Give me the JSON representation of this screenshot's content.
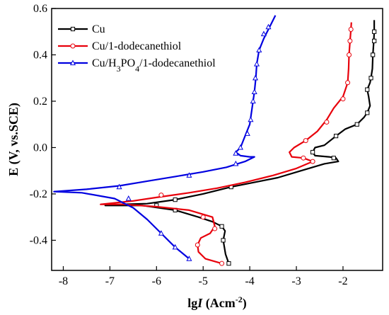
{
  "chart_data": {
    "type": "line",
    "xlabel": "lgI (Acm⁻²)",
    "xlabel_parts": [
      "lg",
      "I",
      " (Acm",
      "-2",
      ")"
    ],
    "ylabel": "E (V, vs.SCE)",
    "xlim": [
      -8.25,
      -1.15
    ],
    "ylim": [
      -0.53,
      0.6
    ],
    "xticks": [
      -8,
      -7,
      -6,
      -5,
      -4,
      -3,
      -2
    ],
    "xtick_labels": [
      "-8",
      "-7",
      "-6",
      "-5",
      "-4",
      "-3",
      "-2"
    ],
    "yticks": [
      -0.4,
      -0.2,
      0.0,
      0.2,
      0.4,
      0.6
    ],
    "ytick_labels": [
      "-0.4",
      "-0.2",
      "0.0",
      "0.2",
      "0.4",
      "0.6"
    ],
    "grid": false,
    "legend_position": "top-left",
    "series": [
      {
        "name": "Cu",
        "legend_parts": [
          [
            "Cu",
            "n"
          ]
        ],
        "color": "#000000",
        "marker": "square",
        "points": [
          [
            -4.45,
            -0.5
          ],
          [
            -4.52,
            -0.46
          ],
          [
            -4.57,
            -0.4
          ],
          [
            -4.53,
            -0.36
          ],
          [
            -4.6,
            -0.34
          ],
          [
            -4.8,
            -0.32
          ],
          [
            -5.1,
            -0.3
          ],
          [
            -5.6,
            -0.27
          ],
          [
            -6.3,
            -0.25
          ],
          [
            -7.1,
            -0.25
          ],
          [
            -6.8,
            -0.245
          ],
          [
            -6.2,
            -0.242
          ],
          [
            -5.6,
            -0.225
          ],
          [
            -5.0,
            -0.2
          ],
          [
            -4.4,
            -0.17
          ],
          [
            -3.9,
            -0.15
          ],
          [
            -3.4,
            -0.13
          ],
          [
            -2.9,
            -0.1
          ],
          [
            -2.4,
            -0.07
          ],
          [
            -2.1,
            -0.06
          ],
          [
            -2.15,
            -0.045
          ],
          [
            -2.3,
            -0.04
          ],
          [
            -2.6,
            -0.035
          ],
          [
            -2.65,
            -0.02
          ],
          [
            -2.6,
            0.0
          ],
          [
            -2.4,
            0.01
          ],
          [
            -2.15,
            0.05
          ],
          [
            -1.95,
            0.08
          ],
          [
            -1.7,
            0.1
          ],
          [
            -1.55,
            0.13
          ],
          [
            -1.48,
            0.15
          ],
          [
            -1.42,
            0.18
          ],
          [
            -1.45,
            0.22
          ],
          [
            -1.48,
            0.25
          ],
          [
            -1.42,
            0.28
          ],
          [
            -1.4,
            0.3
          ],
          [
            -1.37,
            0.34
          ],
          [
            -1.36,
            0.4
          ],
          [
            -1.34,
            0.46
          ],
          [
            -1.33,
            0.5
          ],
          [
            -1.33,
            0.55
          ]
        ],
        "marker_points": [
          [
            -4.45,
            -0.5
          ],
          [
            -4.57,
            -0.4
          ],
          [
            -4.6,
            -0.34
          ],
          [
            -5.6,
            -0.27
          ],
          [
            -6.0,
            -0.25
          ],
          [
            -5.6,
            -0.225
          ],
          [
            -4.4,
            -0.17
          ],
          [
            -2.2,
            -0.045
          ],
          [
            -2.65,
            -0.02
          ],
          [
            -2.15,
            0.05
          ],
          [
            -1.7,
            0.1
          ],
          [
            -1.48,
            0.15
          ],
          [
            -1.48,
            0.25
          ],
          [
            -1.4,
            0.3
          ],
          [
            -1.36,
            0.4
          ],
          [
            -1.33,
            0.46
          ],
          [
            -1.33,
            0.5
          ]
        ]
      },
      {
        "name": "Cu/1-dodecanethiol",
        "legend_parts": [
          [
            "Cu/1-dodecanethiol",
            "n"
          ]
        ],
        "color": "#e8000b",
        "marker": "circle",
        "points": [
          [
            -4.6,
            -0.5
          ],
          [
            -4.95,
            -0.48
          ],
          [
            -5.1,
            -0.45
          ],
          [
            -5.12,
            -0.42
          ],
          [
            -5.05,
            -0.39
          ],
          [
            -4.85,
            -0.37
          ],
          [
            -4.75,
            -0.34
          ],
          [
            -4.8,
            -0.3
          ],
          [
            -5.3,
            -0.27
          ],
          [
            -6.0,
            -0.255
          ],
          [
            -6.7,
            -0.245
          ],
          [
            -7.2,
            -0.245
          ],
          [
            -6.5,
            -0.23
          ],
          [
            -6.0,
            -0.215
          ],
          [
            -5.3,
            -0.195
          ],
          [
            -4.7,
            -0.175
          ],
          [
            -4.1,
            -0.15
          ],
          [
            -3.5,
            -0.12
          ],
          [
            -3.0,
            -0.09
          ],
          [
            -2.65,
            -0.06
          ],
          [
            -2.85,
            -0.045
          ],
          [
            -3.1,
            -0.04
          ],
          [
            -3.15,
            -0.02
          ],
          [
            -3.05,
            0.0
          ],
          [
            -2.8,
            0.03
          ],
          [
            -2.55,
            0.07
          ],
          [
            -2.35,
            0.12
          ],
          [
            -2.2,
            0.17
          ],
          [
            -2.0,
            0.22
          ],
          [
            -1.9,
            0.28
          ],
          [
            -1.88,
            0.34
          ],
          [
            -1.87,
            0.4
          ],
          [
            -1.85,
            0.46
          ],
          [
            -1.83,
            0.51
          ],
          [
            -1.82,
            0.54
          ]
        ],
        "marker_points": [
          [
            -4.6,
            -0.5
          ],
          [
            -5.12,
            -0.42
          ],
          [
            -4.75,
            -0.35
          ],
          [
            -5.0,
            -0.3
          ],
          [
            -5.9,
            -0.205
          ],
          [
            -2.85,
            -0.045
          ],
          [
            -2.65,
            -0.06
          ],
          [
            -2.8,
            0.03
          ],
          [
            -2.35,
            0.11
          ],
          [
            -2.0,
            0.21
          ],
          [
            -1.9,
            0.28
          ],
          [
            -1.87,
            0.4
          ],
          [
            -1.85,
            0.46
          ],
          [
            -1.83,
            0.51
          ]
        ]
      },
      {
        "name": "Cu/H3PO4/1-dodecanethiol",
        "legend_parts": [
          [
            "Cu/H",
            "n"
          ],
          [
            "3",
            "sub"
          ],
          [
            "PO",
            "n"
          ],
          [
            "4",
            "sub"
          ],
          [
            "/1-dodecanethiol",
            "n"
          ]
        ],
        "color": "#0000e0",
        "marker": "triangle",
        "points": [
          [
            -5.3,
            -0.48
          ],
          [
            -5.6,
            -0.43
          ],
          [
            -5.9,
            -0.37
          ],
          [
            -6.2,
            -0.31
          ],
          [
            -6.5,
            -0.26
          ],
          [
            -6.9,
            -0.22
          ],
          [
            -7.6,
            -0.195
          ],
          [
            -8.2,
            -0.19
          ],
          [
            -7.5,
            -0.18
          ],
          [
            -6.8,
            -0.165
          ],
          [
            -6.2,
            -0.145
          ],
          [
            -5.6,
            -0.125
          ],
          [
            -5.0,
            -0.105
          ],
          [
            -4.5,
            -0.085
          ],
          [
            -4.1,
            -0.06
          ],
          [
            -3.9,
            -0.04
          ],
          [
            -4.0,
            -0.04
          ],
          [
            -4.2,
            -0.035
          ],
          [
            -4.3,
            -0.02
          ],
          [
            -4.2,
            0.0
          ],
          [
            -4.1,
            0.05
          ],
          [
            -4.0,
            0.1
          ],
          [
            -3.95,
            0.17
          ],
          [
            -3.9,
            0.24
          ],
          [
            -3.87,
            0.3
          ],
          [
            -3.85,
            0.36
          ],
          [
            -3.8,
            0.42
          ],
          [
            -3.7,
            0.47
          ],
          [
            -3.6,
            0.51
          ],
          [
            -3.5,
            0.55
          ],
          [
            -3.45,
            0.57
          ]
        ],
        "marker_points": [
          [
            -5.3,
            -0.48
          ],
          [
            -5.6,
            -0.43
          ],
          [
            -5.9,
            -0.37
          ],
          [
            -6.6,
            -0.22
          ],
          [
            -6.8,
            -0.17
          ],
          [
            -5.3,
            -0.12
          ],
          [
            -4.3,
            -0.07
          ],
          [
            -4.3,
            -0.025
          ],
          [
            -4.2,
            0.0
          ],
          [
            -4.05,
            0.06
          ],
          [
            -3.98,
            0.12
          ],
          [
            -3.93,
            0.2
          ],
          [
            -3.9,
            0.24
          ],
          [
            -3.88,
            0.3
          ],
          [
            -3.85,
            0.36
          ],
          [
            -3.8,
            0.42
          ],
          [
            -3.7,
            0.49
          ],
          [
            -3.6,
            0.52
          ]
        ]
      }
    ]
  }
}
